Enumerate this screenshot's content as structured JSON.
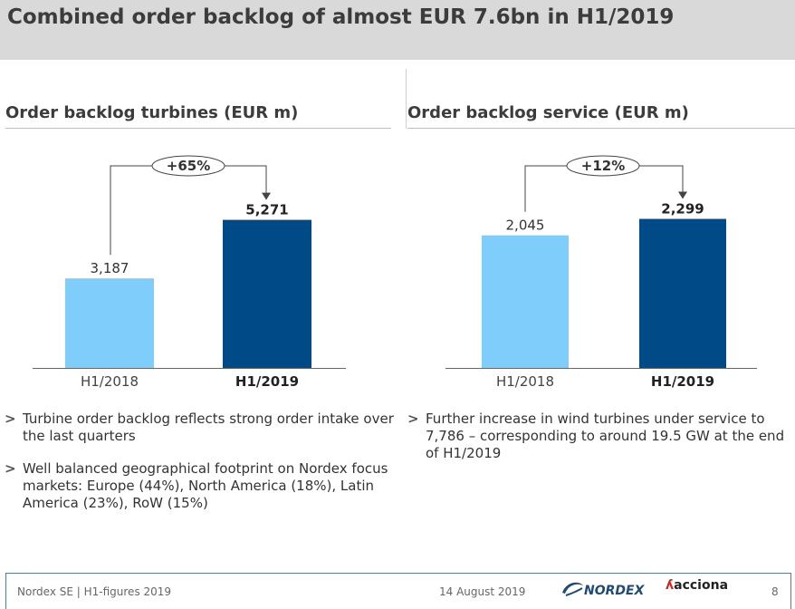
{
  "title": "Combined order backlog of almost EUR 7.6bn in H1/2019",
  "colors": {
    "prior": "#7fcdfa",
    "current": "#004a87",
    "title_bg": "#d9d9d9"
  },
  "chart_data": [
    {
      "type": "bar",
      "title": "Order backlog turbines (EUR m)",
      "categories": [
        "H1/2018",
        "H1/2019"
      ],
      "values": [
        3187,
        5271
      ],
      "value_labels": [
        "3,187",
        "5,271"
      ],
      "change_label": "+65%",
      "ylim": [
        0,
        6000
      ]
    },
    {
      "type": "bar",
      "title": "Order backlog service (EUR m)",
      "categories": [
        "H1/2018",
        "H1/2019"
      ],
      "values": [
        2045,
        2299
      ],
      "value_labels": [
        "2,045",
        "2,299"
      ],
      "change_label": "+12%",
      "ylim": [
        0,
        2600
      ]
    }
  ],
  "bullets_left": [
    "Turbine order backlog reflects strong order intake over the last quarters",
    "Well balanced geographical footprint on Nordex focus markets: Europe (44%), North America (18%), Latin America (23%), RoW (15%)"
  ],
  "bullets_right": [
    "Further increase in wind turbines under service to 7,786 – corresponding to around 19.5 GW at the end of H1/2019"
  ],
  "footer": {
    "left": "Nordex SE | H1-figures 2019",
    "date": "14 August 2019",
    "page": "8",
    "logo_nordex": "NORDEX",
    "logo_acciona": "acciona"
  },
  "icons": {
    "bullet": "chevron-right-icon",
    "arrow": "arrow-down-icon"
  }
}
